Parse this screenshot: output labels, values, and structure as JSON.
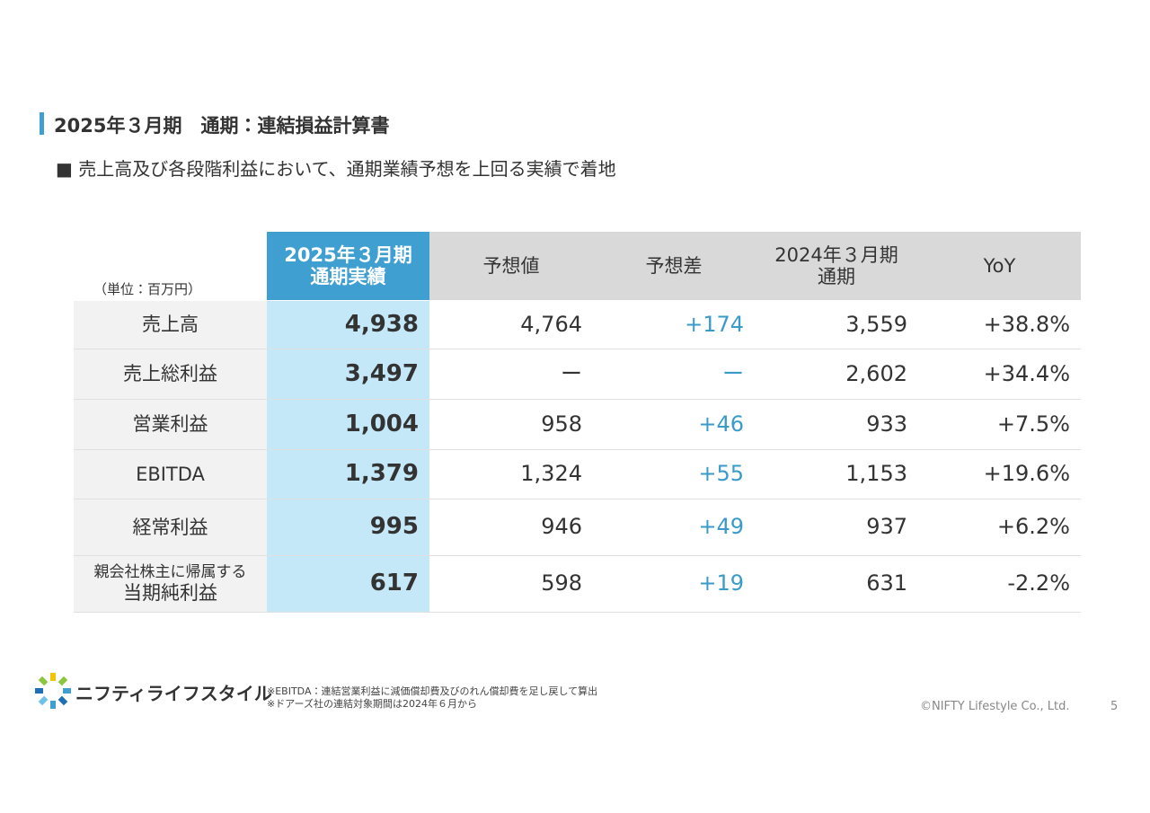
{
  "header": {
    "title": "2025年３月期　通期：連結損益計算書",
    "subtitle": "■ 売上高及び各段階利益において、通期業績予想を上回る実績で着地"
  },
  "table": {
    "unit": "（単位：百万円）",
    "columns": [
      [
        "2025年３月期",
        "通期実績"
      ],
      [
        "予想値"
      ],
      [
        "予想差"
      ],
      [
        "2024年３月期",
        "通期"
      ],
      [
        "YoY"
      ]
    ],
    "rows": [
      {
        "label": [
          "売上高"
        ],
        "cells": [
          "4,938",
          "4,764",
          "+174",
          "3,559",
          "+38.8%"
        ]
      },
      {
        "label": [
          "売上総利益"
        ],
        "cells": [
          "3,497",
          "ー",
          "ー",
          "2,602",
          "+34.4%"
        ]
      },
      {
        "label": [
          "営業利益"
        ],
        "cells": [
          "1,004",
          "958",
          "+46",
          "933",
          "+7.5%"
        ]
      },
      {
        "label": [
          "EBITDA"
        ],
        "cells": [
          "1,379",
          "1,324",
          "+55",
          "1,153",
          "+19.6%"
        ]
      },
      {
        "label": [
          "経常利益"
        ],
        "cells": [
          "995",
          "946",
          "+49",
          "937",
          "+6.2%"
        ]
      },
      {
        "label": [
          "親会社株主に帰属する",
          "当期純利益"
        ],
        "cells": [
          "617",
          "598",
          "+19",
          "631",
          "-2.2%"
        ]
      }
    ]
  },
  "footer": {
    "logo_text": "ニフティライフスタイル",
    "notes": [
      "※EBITDA：連結営業利益に減価償却費及びのれん償却費を足し戻して算出",
      "※ドアーズ社の連結対象期間は2024年６月から"
    ],
    "copyright": "©NIFTY Lifestyle Co., Ltd.",
    "page": "5"
  }
}
